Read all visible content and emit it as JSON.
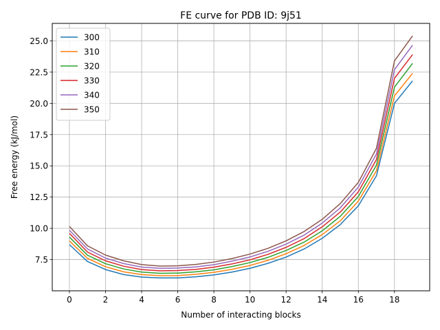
{
  "chart_data": {
    "type": "line",
    "title": "FE curve for PDB ID: 9j51",
    "xlabel": "Number of interacting blocks",
    "ylabel": "Free energy (kJ/mol)",
    "xlim": [
      -0.95,
      19.95
    ],
    "ylim": [
      5.0,
      26.4
    ],
    "xticks": [
      0,
      2,
      4,
      6,
      8,
      10,
      12,
      14,
      16,
      18
    ],
    "yticks": [
      7.5,
      10.0,
      12.5,
      15.0,
      17.5,
      20.0,
      22.5,
      25.0
    ],
    "ytick_labels": [
      "7.5",
      "10.0",
      "12.5",
      "15.0",
      "17.5",
      "20.0",
      "22.5",
      "25.0"
    ],
    "grid": true,
    "legend_position": "top-left",
    "x": [
      0,
      1,
      2,
      3,
      4,
      5,
      6,
      7,
      8,
      9,
      10,
      11,
      12,
      13,
      14,
      15,
      16,
      17,
      18,
      19
    ],
    "series": [
      {
        "name": "300",
        "color": "#1f77b4",
        "values": [
          8.7,
          7.35,
          6.7,
          6.3,
          6.1,
          6.03,
          6.03,
          6.12,
          6.27,
          6.5,
          6.8,
          7.2,
          7.7,
          8.35,
          9.2,
          10.3,
          11.8,
          14.2,
          20.0,
          21.8
        ]
      },
      {
        "name": "310",
        "color": "#ff7f0e",
        "values": [
          9.0,
          7.6,
          6.93,
          6.52,
          6.3,
          6.21,
          6.22,
          6.32,
          6.48,
          6.72,
          7.03,
          7.44,
          7.97,
          8.63,
          9.5,
          10.6,
          12.18,
          14.6,
          20.6,
          22.4
        ]
      },
      {
        "name": "320",
        "color": "#2ca02c",
        "values": [
          9.3,
          7.85,
          7.17,
          6.75,
          6.5,
          6.4,
          6.42,
          6.52,
          6.68,
          6.94,
          7.26,
          7.68,
          8.23,
          8.9,
          9.8,
          10.96,
          12.55,
          15.05,
          21.3,
          23.2
        ]
      },
      {
        "name": "330",
        "color": "#d62728",
        "values": [
          9.6,
          8.1,
          7.4,
          6.97,
          6.7,
          6.6,
          6.62,
          6.71,
          6.89,
          7.15,
          7.48,
          7.92,
          8.48,
          9.18,
          10.12,
          11.3,
          12.92,
          15.5,
          22.0,
          23.9
        ]
      },
      {
        "name": "340",
        "color": "#9467bd",
        "values": [
          9.85,
          8.35,
          7.62,
          7.18,
          6.9,
          6.8,
          6.82,
          6.91,
          7.09,
          7.37,
          7.71,
          8.16,
          8.74,
          9.46,
          10.42,
          11.64,
          13.3,
          15.95,
          22.7,
          24.65
        ]
      },
      {
        "name": "350",
        "color": "#8c564b",
        "values": [
          10.15,
          8.6,
          7.86,
          7.4,
          7.1,
          6.98,
          7.0,
          7.11,
          7.3,
          7.58,
          7.94,
          8.4,
          9.0,
          9.75,
          10.72,
          11.98,
          13.68,
          16.4,
          23.4,
          25.4
        ]
      }
    ]
  }
}
